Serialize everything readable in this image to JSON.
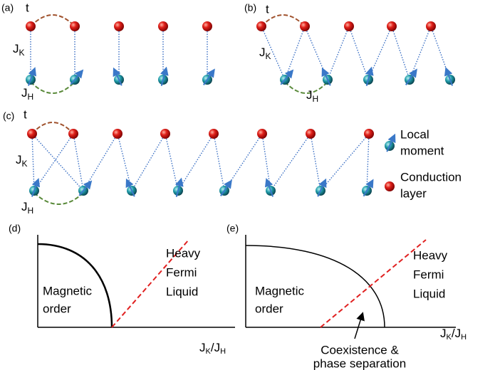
{
  "panels": [
    {
      "label": "(a)",
      "hopping": "t",
      "kondo": {
        "symbol": "J",
        "subscript": "K"
      },
      "hund": {
        "symbol": "J",
        "subscript": "H"
      }
    },
    {
      "label": "(b)",
      "hopping": "t",
      "kondo": {
        "symbol": "J",
        "subscript": "K"
      },
      "hund": {
        "symbol": "J",
        "subscript": "H"
      }
    },
    {
      "label": "(c)",
      "hopping": "t",
      "kondo": {
        "symbol": "J",
        "subscript": "K"
      },
      "hund": {
        "symbol": "J",
        "subscript": "H"
      }
    }
  ],
  "legend": [
    {
      "lines": [
        "Local",
        "moment"
      ]
    },
    {
      "lines": [
        "Conduction",
        "layer"
      ]
    }
  ],
  "phase_diagrams": [
    {
      "label": "(d)",
      "regions": [
        {
          "lines": [
            "Magnetic",
            "order"
          ]
        },
        {
          "lines": [
            "Heavy",
            "Fermi",
            "Liquid"
          ]
        }
      ],
      "x_axis": {
        "numerator": {
          "symbol": "J",
          "subscript": "K"
        },
        "separator": "/",
        "denominator": {
          "symbol": "J",
          "subscript": "H"
        }
      }
    },
    {
      "label": "(e)",
      "regions": [
        {
          "lines": [
            "Magnetic",
            "order"
          ]
        },
        {
          "lines": [
            "Heavy",
            "Fermi",
            "Liquid"
          ]
        }
      ],
      "x_axis": {
        "numerator": {
          "symbol": "J",
          "subscript": "K"
        },
        "separator": "/",
        "denominator": {
          "symbol": "J",
          "subscript": "H"
        }
      },
      "annotation": {
        "lines": [
          "Coexistence &",
          "phase separation"
        ]
      }
    }
  ]
}
